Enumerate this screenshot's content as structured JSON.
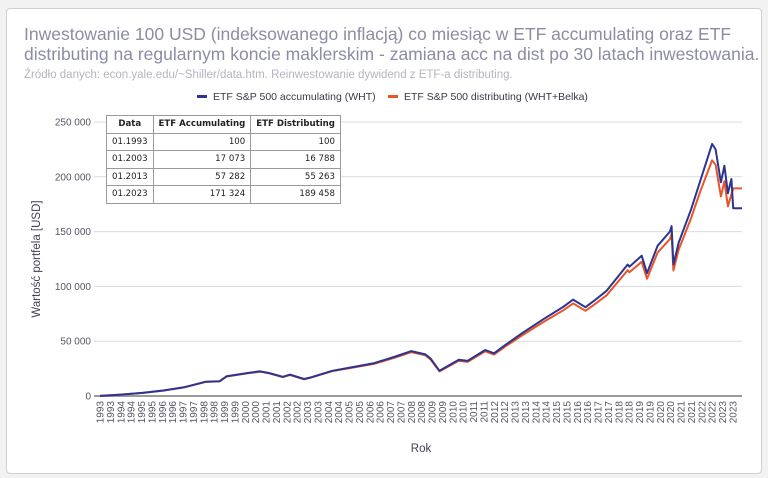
{
  "chart_data": {
    "type": "line",
    "title": [
      "Inwestowanie 100 USD (indeksowanego inflacją) co miesiąc w ETF accumulating oraz ETF",
      "distributing na regularnym koncie maklerskim - zamiana acc na dist po 30 latach inwestowania."
    ],
    "subtitle": "Źródło danych: econ.yale.edu/~Shiller/data.htm. Reinwestowanie dywidend z ETF-a distributing.",
    "xlabel": "Rok",
    "ylabel": "Wartość portfela [USD]",
    "ylim": [
      0,
      250000
    ],
    "yticks": [
      0,
      50000,
      100000,
      150000,
      200000,
      250000
    ],
    "ytick_labels": [
      "0",
      "50 000",
      "100 000",
      "150 000",
      "200 000",
      "250 000"
    ],
    "xlim": [
      "1993-01",
      "2023-06"
    ],
    "xtick_labels": [
      "1993",
      "1993",
      "1994",
      "1994",
      "1995",
      "1995",
      "1996",
      "1996",
      "1997",
      "1997",
      "1998",
      "1998",
      "1999",
      "1999",
      "2000",
      "2000",
      "2001",
      "2001",
      "2002",
      "2002",
      "2003",
      "2003",
      "2004",
      "2004",
      "2005",
      "2005",
      "2006",
      "2006",
      "2007",
      "2007",
      "2008",
      "2008",
      "2009",
      "2009",
      "2010",
      "2010",
      "2011",
      "2011",
      "2012",
      "2012",
      "2013",
      "2013",
      "2014",
      "2014",
      "2015",
      "2015",
      "2016",
      "2016",
      "2017",
      "2017",
      "2018",
      "2018",
      "2019",
      "2019",
      "2020",
      "2020",
      "2021",
      "2021",
      "2022",
      "2022",
      "2023",
      "2023"
    ],
    "grid": "horizontal",
    "legend_position": "top",
    "x": [
      "1993-01",
      "1994-01",
      "1995-01",
      "1996-01",
      "1997-01",
      "1998-01",
      "1998-09",
      "1999-01",
      "2000-01",
      "2000-08",
      "2001-01",
      "2001-09",
      "2002-01",
      "2002-09",
      "2003-01",
      "2004-01",
      "2005-01",
      "2006-01",
      "2007-01",
      "2007-10",
      "2008-06",
      "2008-09",
      "2009-02",
      "2010-01",
      "2010-06",
      "2011-04",
      "2011-09",
      "2012-03",
      "2013-01",
      "2014-01",
      "2015-01",
      "2015-06",
      "2016-01",
      "2016-06",
      "2017-01",
      "2018-01",
      "2018-02",
      "2018-09",
      "2018-12",
      "2019-06",
      "2020-01",
      "2020-02",
      "2020-03",
      "2020-06",
      "2021-01",
      "2021-06",
      "2022-01",
      "2022-03",
      "2022-06",
      "2022-08",
      "2022-10",
      "2022-12",
      "2023-01",
      "2023-06"
    ],
    "series": [
      {
        "name": "ETF S&P 500 accumulating (WHT)",
        "color": "#2b3591",
        "values": [
          100,
          1300,
          2800,
          5000,
          8000,
          13000,
          13500,
          18000,
          21000,
          22500,
          21000,
          17500,
          19500,
          15500,
          17073,
          23000,
          26500,
          30000,
          36000,
          41000,
          38000,
          34000,
          23000,
          33000,
          32000,
          42000,
          39000,
          46000,
          57282,
          70000,
          82000,
          88000,
          81000,
          87000,
          96000,
          120000,
          118000,
          128000,
          112000,
          137000,
          150000,
          155000,
          120000,
          140000,
          170000,
          195000,
          230000,
          225000,
          195000,
          210000,
          185000,
          198000,
          171324,
          171324
        ]
      },
      {
        "name": "ETF S&P 500 distributing (WHT+Belka)",
        "color": "#e8552a",
        "values": [
          100,
          1290,
          2780,
          4960,
          7930,
          12880,
          13350,
          17800,
          20750,
          22200,
          20700,
          17250,
          19200,
          15250,
          16788,
          22600,
          26000,
          29400,
          35200,
          40000,
          37100,
          33200,
          22400,
          32100,
          31100,
          40800,
          37800,
          44600,
          55263,
          67400,
          78800,
          84500,
          77700,
          83400,
          91900,
          114800,
          112900,
          122400,
          107000,
          130800,
          143200,
          148000,
          114500,
          133600,
          162000,
          185500,
          215000,
          211000,
          182000,
          196000,
          173000,
          184000,
          189458,
          189458
        ]
      }
    ]
  },
  "table": {
    "headers": [
      "Data",
      "ETF Accumulating",
      "ETF Distributing"
    ],
    "rows": [
      [
        "01.1993",
        "100",
        "100"
      ],
      [
        "01.2003",
        "17 073",
        "16 788"
      ],
      [
        "01.2013",
        "57 282",
        "55 263"
      ],
      [
        "01.2023",
        "171 324",
        "189 458"
      ]
    ]
  }
}
